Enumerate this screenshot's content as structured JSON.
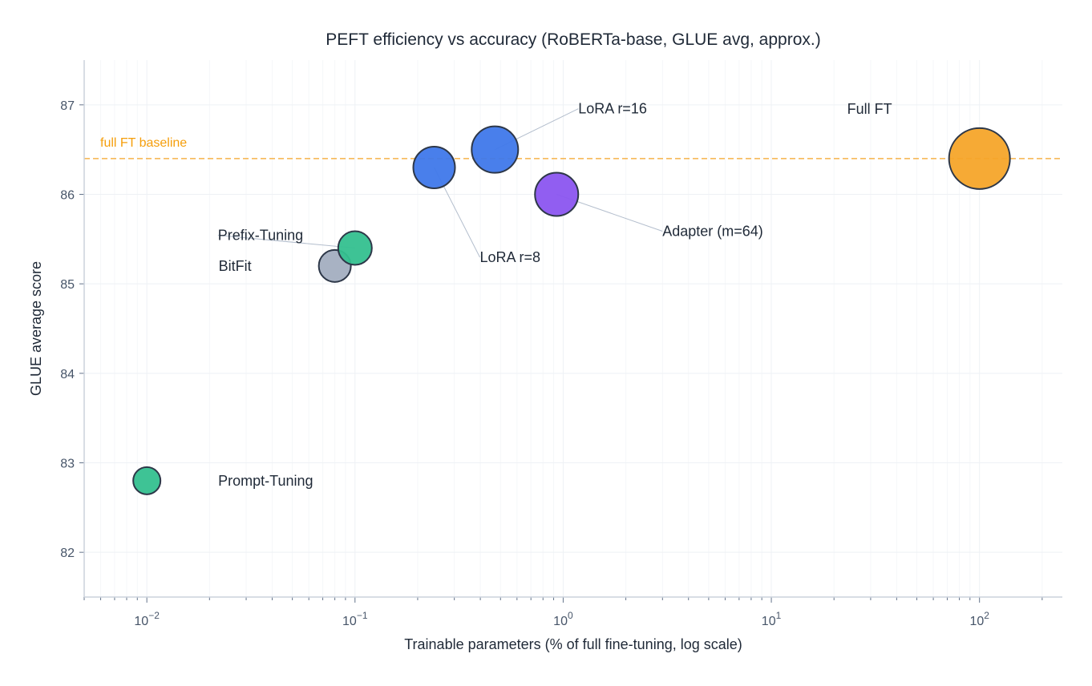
{
  "chart_data": {
    "type": "scatter",
    "title": "PEFT efficiency vs accuracy  (RoBERTa-base, GLUE avg, approx.)",
    "xlabel": "Trainable parameters (% of full fine-tuning, log scale)",
    "ylabel": "GLUE average score",
    "xscale": "log",
    "xlim": [
      0.005,
      250
    ],
    "ylim": [
      81.5,
      87.5
    ],
    "xticks": [
      {
        "value": 0.01,
        "exp": "−2"
      },
      {
        "value": 0.1,
        "exp": "−1"
      },
      {
        "value": 1,
        "exp": "0"
      },
      {
        "value": 10,
        "exp": "1"
      },
      {
        "value": 100,
        "exp": "2"
      }
    ],
    "xtick_base": "10",
    "yticks": [
      82,
      83,
      84,
      85,
      86,
      87
    ],
    "grid": true,
    "baseline": {
      "label": "full FT baseline",
      "value": 86.4,
      "color": "#f5a52a"
    },
    "points": [
      {
        "label": "Prompt-Tuning",
        "x": 0.01,
        "y": 82.8,
        "color": "#34c08f"
      },
      {
        "label": "BitFit",
        "x": 0.08,
        "y": 85.2,
        "color": "#a3aec0"
      },
      {
        "label": "Prefix-Tuning",
        "x": 0.1,
        "y": 85.4,
        "color": "#34c08f"
      },
      {
        "label": "LoRA r=8",
        "x": 0.24,
        "y": 86.3,
        "color": "#3f78ea"
      },
      {
        "label": "LoRA r=16",
        "x": 0.47,
        "y": 86.5,
        "color": "#3f78ea"
      },
      {
        "label": "Adapter (m=64)",
        "x": 0.93,
        "y": 86.0,
        "color": "#8b55f0"
      },
      {
        "label": "Full FT",
        "x": 100,
        "y": 86.4,
        "color": "#f5a52a"
      }
    ]
  }
}
